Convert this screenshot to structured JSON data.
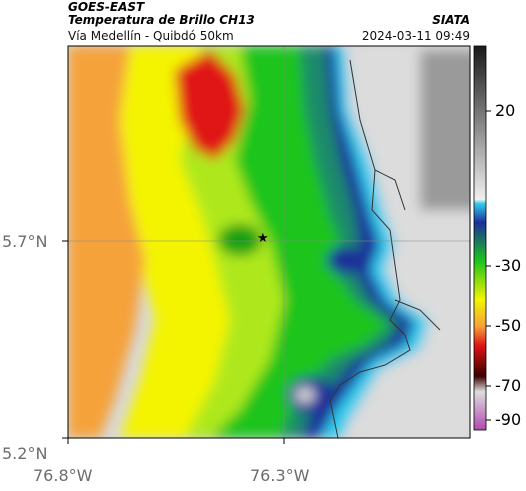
{
  "header": {
    "satellite": "GOES-EAST",
    "product": "Temperatura de Brillo CH13",
    "region": "Vía Medellín - Quibdó 50km",
    "org": "SIATA",
    "datetime": "2024-03-11 09:49"
  },
  "axes": {
    "lat_ticks": [
      "5.7°N",
      "5.2°N"
    ],
    "lon_ticks": [
      "76.8°W",
      "76.3°W"
    ]
  },
  "colorbar": {
    "ticks": [
      "20",
      "-30",
      "-50",
      "-70",
      "-90"
    ],
    "colors": {
      "warm_gray": "#e6e6e6",
      "dark_gray": "#3a3a3a",
      "cyan": "#33ccee",
      "blue": "#1b2f9a",
      "green": "#1dc41d",
      "yellow": "#f4f400",
      "orange": "#f5a23a",
      "red": "#e01414",
      "magenta": "#b04ab0"
    }
  },
  "marker": {
    "symbol": "★"
  }
}
